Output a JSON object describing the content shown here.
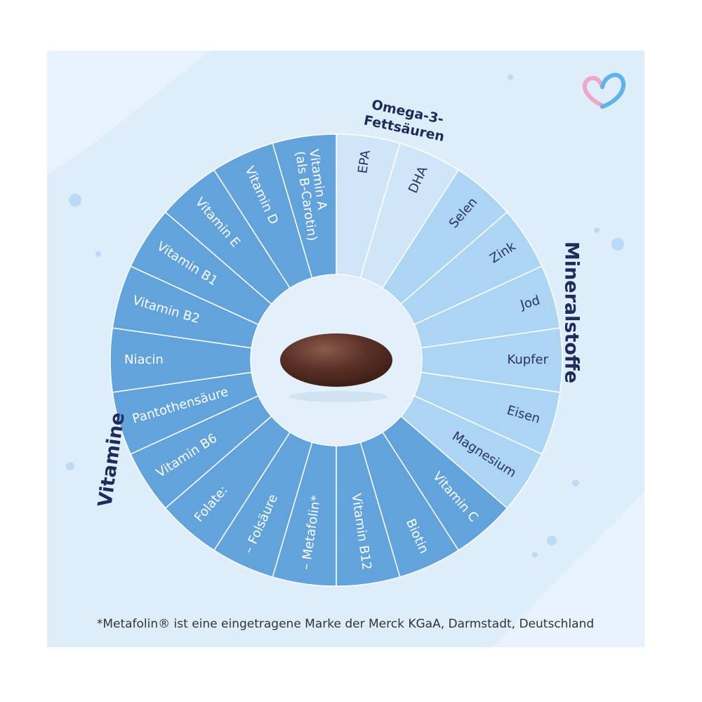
{
  "groups": [
    {
      "title_lines": [
        "Omega-3-",
        "Fettsäuren"
      ],
      "segments": [
        {
          "lines": [
            "EPA"
          ]
        },
        {
          "lines": [
            "DHA"
          ]
        }
      ]
    },
    {
      "title_lines": [
        "Mineralstoffe"
      ],
      "segments": [
        {
          "lines": [
            "Selen"
          ]
        },
        {
          "lines": [
            "Zink"
          ]
        },
        {
          "lines": [
            "Jod"
          ]
        },
        {
          "lines": [
            "Kupfer"
          ]
        },
        {
          "lines": [
            "Eisen"
          ]
        },
        {
          "lines": [
            "Magnesium"
          ]
        }
      ]
    },
    {
      "title_lines": [
        "Vitamine"
      ],
      "segments": [
        {
          "lines": [
            "Vitamin C"
          ]
        },
        {
          "lines": [
            "Biotin"
          ]
        },
        {
          "lines": [
            "Vitamin B12"
          ]
        },
        {
          "lines": [
            "– Metafolin*"
          ]
        },
        {
          "lines": [
            "– Folsäure"
          ]
        },
        {
          "lines": [
            "Folate:"
          ]
        },
        {
          "lines": [
            "Vitamin B6"
          ]
        },
        {
          "lines": [
            "Pantothensäure"
          ]
        },
        {
          "lines": [
            "Niacin"
          ]
        },
        {
          "lines": [
            "Vitamin B2"
          ]
        },
        {
          "lines": [
            "Vitamin B1"
          ]
        },
        {
          "lines": [
            "Vitamin E"
          ]
        },
        {
          "lines": [
            "Vitamin D"
          ]
        },
        {
          "lines": [
            "Vitamin A",
            "(als B-Carotin)"
          ]
        }
      ]
    }
  ],
  "footnote": "*Metafolin® ist eine eingetragene Marke der Merck KGaA, Darmstadt, Deutschland"
}
